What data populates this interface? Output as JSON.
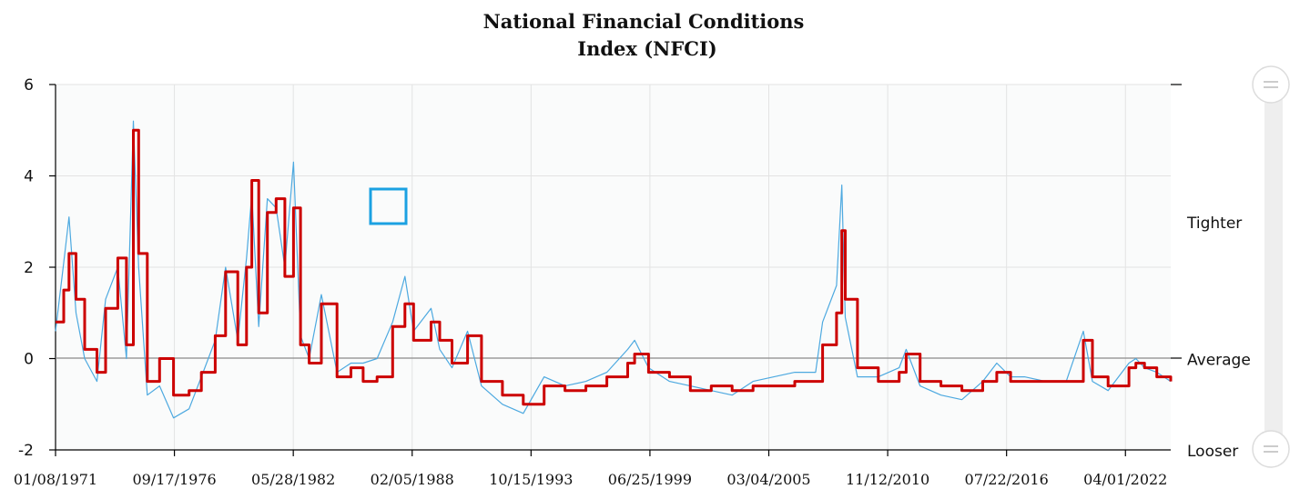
{
  "chart_data": {
    "type": "line",
    "title": "National Financial Conditions",
    "subtitle": "Index (NFCI)",
    "ylim": [
      -2,
      6
    ],
    "y_ticks": [
      "-2",
      "0",
      "2",
      "4",
      "6"
    ],
    "x_range": [
      "1971-01-08",
      "2024-06-01"
    ],
    "x_tick_labels": [
      "01/08/1971",
      "09/17/1976",
      "05/28/1982",
      "02/05/1988",
      "10/15/1993",
      "06/25/1999",
      "03/04/2005",
      "11/12/2010",
      "07/22/2016",
      "04/01/2022"
    ],
    "x_tick_dates": [
      "1971-01-08",
      "1976-09-17",
      "1982-05-28",
      "1988-02-05",
      "1993-10-15",
      "1999-06-25",
      "2005-03-04",
      "2010-11-12",
      "2016-07-22",
      "2022-04-01"
    ],
    "right_labels": [
      {
        "text": "Tighter",
        "y": 3
      },
      {
        "text": "Average",
        "y": 0
      },
      {
        "text": "Looser",
        "y": -2
      }
    ],
    "grid": true,
    "series": [
      {
        "name": "",
        "color": "#cc0000",
        "x": [
          "1971-01-08",
          "1971-06-01",
          "1971-09-01",
          "1972-01-01",
          "1972-06-01",
          "1973-01-01",
          "1973-06-01",
          "1974-01-01",
          "1974-06-01",
          "1974-10-01",
          "1975-01-01",
          "1975-06-01",
          "1976-01-01",
          "1976-09-01",
          "1977-06-01",
          "1978-01-01",
          "1978-09-01",
          "1979-03-01",
          "1979-10-01",
          "1980-03-01",
          "1980-06-01",
          "1980-10-01",
          "1981-03-01",
          "1981-08-01",
          "1982-01-01",
          "1982-06-01",
          "1982-10-01",
          "1983-03-01",
          "1983-10-01",
          "1984-07-01",
          "1985-03-01",
          "1985-10-01",
          "1986-06-01",
          "1987-03-01",
          "1987-10-01",
          "1988-03-01",
          "1989-01-01",
          "1989-06-01",
          "1990-01-01",
          "1990-10-01",
          "1991-06-01",
          "1992-06-01",
          "1993-06-01",
          "1994-06-01",
          "1995-06-01",
          "1996-06-01",
          "1997-06-01",
          "1998-06-01",
          "1998-10-01",
          "1999-06-01",
          "2000-06-01",
          "2001-06-01",
          "2002-06-01",
          "2003-06-01",
          "2004-06-01",
          "2005-06-01",
          "2006-06-01",
          "2007-06-01",
          "2007-10-01",
          "2008-06-01",
          "2008-09-01",
          "2008-11-01",
          "2009-06-01",
          "2010-06-01",
          "2011-06-01",
          "2011-10-01",
          "2012-06-01",
          "2013-06-01",
          "2014-06-01",
          "2015-06-01",
          "2016-02-01",
          "2016-10-01",
          "2017-06-01",
          "2018-06-01",
          "2019-06-01",
          "2020-03-25",
          "2020-09-01",
          "2021-06-01",
          "2022-06-01",
          "2022-10-01",
          "2023-03-01",
          "2023-10-01",
          "2024-06-01"
        ],
        "values": [
          0.8,
          1.5,
          2.3,
          1.3,
          0.2,
          -0.3,
          1.1,
          2.2,
          0.3,
          5.0,
          2.3,
          -0.5,
          0.0,
          -0.8,
          -0.7,
          -0.3,
          0.5,
          1.9,
          0.3,
          2.0,
          3.9,
          1.0,
          3.2,
          3.5,
          1.8,
          3.3,
          0.3,
          -0.1,
          1.2,
          -0.4,
          -0.2,
          -0.5,
          -0.4,
          0.7,
          1.2,
          0.4,
          0.8,
          0.4,
          -0.1,
          0.5,
          -0.5,
          -0.8,
          -1.0,
          -0.6,
          -0.7,
          -0.6,
          -0.4,
          -0.1,
          0.1,
          -0.3,
          -0.4,
          -0.7,
          -0.6,
          -0.7,
          -0.6,
          -0.6,
          -0.5,
          -0.5,
          0.3,
          1.0,
          2.8,
          1.3,
          -0.2,
          -0.5,
          -0.3,
          0.1,
          -0.5,
          -0.6,
          -0.7,
          -0.5,
          -0.3,
          -0.5,
          -0.5,
          -0.5,
          -0.5,
          0.4,
          -0.4,
          -0.6,
          -0.2,
          -0.1,
          -0.2,
          -0.4,
          -0.5
        ]
      },
      {
        "name": "",
        "color": "#4da9e0",
        "x": [
          "1971-01-08",
          "1971-06-01",
          "1971-09-01",
          "1972-01-01",
          "1972-06-01",
          "1973-01-01",
          "1973-06-01",
          "1974-01-01",
          "1974-06-01",
          "1974-10-01",
          "1975-01-01",
          "1975-06-01",
          "1976-01-01",
          "1976-09-01",
          "1977-06-01",
          "1978-01-01",
          "1978-09-01",
          "1979-03-01",
          "1979-10-01",
          "1980-03-01",
          "1980-06-01",
          "1980-10-01",
          "1981-03-01",
          "1981-08-01",
          "1982-01-01",
          "1982-06-01",
          "1982-10-01",
          "1983-03-01",
          "1983-10-01",
          "1984-07-01",
          "1985-03-01",
          "1985-10-01",
          "1986-06-01",
          "1987-03-01",
          "1987-10-01",
          "1988-03-01",
          "1989-01-01",
          "1989-06-01",
          "1990-01-01",
          "1990-10-01",
          "1991-06-01",
          "1992-06-01",
          "1993-06-01",
          "1994-06-01",
          "1995-06-01",
          "1996-06-01",
          "1997-06-01",
          "1998-06-01",
          "1998-10-01",
          "1999-06-01",
          "2000-06-01",
          "2001-06-01",
          "2002-06-01",
          "2003-06-01",
          "2004-06-01",
          "2005-06-01",
          "2006-06-01",
          "2007-06-01",
          "2007-10-01",
          "2008-06-01",
          "2008-09-01",
          "2008-11-01",
          "2009-06-01",
          "2010-06-01",
          "2011-06-01",
          "2011-10-01",
          "2012-06-01",
          "2013-06-01",
          "2014-06-01",
          "2015-06-01",
          "2016-02-01",
          "2016-10-01",
          "2017-06-01",
          "2018-06-01",
          "2019-06-01",
          "2020-03-25",
          "2020-09-01",
          "2021-06-01",
          "2022-06-01",
          "2022-10-01",
          "2023-03-01",
          "2023-10-01",
          "2024-06-01"
        ],
        "values": [
          0.6,
          2.1,
          3.1,
          1.0,
          0.0,
          -0.5,
          1.3,
          2.0,
          0.0,
          5.2,
          2.0,
          -0.8,
          -0.6,
          -1.3,
          -1.1,
          -0.4,
          0.4,
          2.0,
          0.4,
          2.2,
          3.6,
          0.7,
          3.5,
          3.3,
          2.0,
          4.3,
          0.5,
          0.0,
          1.4,
          -0.3,
          -0.1,
          -0.1,
          0.0,
          0.8,
          1.8,
          0.6,
          1.1,
          0.2,
          -0.2,
          0.6,
          -0.6,
          -1.0,
          -1.2,
          -0.4,
          -0.6,
          -0.5,
          -0.3,
          0.2,
          0.4,
          -0.2,
          -0.5,
          -0.6,
          -0.7,
          -0.8,
          -0.5,
          -0.4,
          -0.3,
          -0.3,
          0.8,
          1.6,
          3.8,
          0.9,
          -0.4,
          -0.4,
          -0.2,
          0.2,
          -0.6,
          -0.8,
          -0.9,
          -0.5,
          -0.1,
          -0.4,
          -0.4,
          -0.5,
          -0.5,
          0.6,
          -0.5,
          -0.7,
          -0.1,
          0.0,
          -0.2,
          -0.3,
          -0.5
        ]
      }
    ]
  },
  "legend_box_color": "#1ba1e2"
}
